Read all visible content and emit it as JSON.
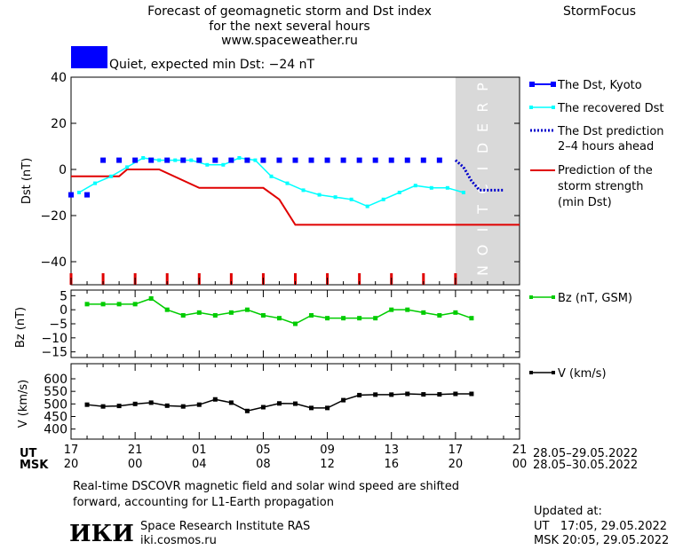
{
  "header": {
    "title_line1": "Forecast of geomagnetic storm and Dst index",
    "title_line2": "for the next several hours",
    "website": "www.spaceweather.ru",
    "brand": "StormFocus"
  },
  "status": {
    "text": "Quiet, expected min Dst: −24 nT",
    "color": "#0000ff"
  },
  "prediction_band": {
    "label": "PREDICTION",
    "color": "#d9d9d9"
  },
  "colors": {
    "dst_kyoto": "#0000ff",
    "dst_recovered": "#00ffff",
    "dst_prediction": "#0000cc",
    "storm_strength": "#e00000",
    "bz": "#00cc00",
    "speed": "#000000"
  },
  "legend": {
    "dst_kyoto": "The Dst, Kyoto",
    "dst_recovered": "The recovered Dst",
    "dst_prediction_line1": "The Dst prediction",
    "dst_prediction_line2": "2–4 hours ahead",
    "storm_line1": "Prediction of the",
    "storm_line2": "storm strength",
    "storm_line3": "(min Dst)",
    "bz": "Bz (nT, GSM)",
    "speed": "V (km/s)"
  },
  "time_axis": {
    "ut_label": "UT",
    "msk_label": "MSK",
    "ut_ticks": [
      "17",
      "21",
      "01",
      "05",
      "09",
      "13",
      "17",
      "21"
    ],
    "msk_ticks": [
      "20",
      "00",
      "04",
      "08",
      "12",
      "16",
      "20",
      "00"
    ],
    "ut_dates": "28.05–29.05.2022",
    "msk_dates": "28.05–30.05.2022"
  },
  "footer": {
    "note_line1": "Real-time DSCOVR magnetic field and solar wind speed are shifted",
    "note_line2": "forward, accounting for L1-Earth propagation",
    "logo_text": "ИКИ",
    "institute": "Space Research Institute RAS",
    "site": "iki.cosmos.ru",
    "updated_label": "Updated at:",
    "updated_ut": "UT   17:05, 29.05.2022",
    "updated_msk": "MSK 20:05, 29.05.2022"
  },
  "chart_data": [
    {
      "type": "line",
      "ylabel": "Dst (nT)",
      "ylim": [
        -50,
        40
      ],
      "yticks": [
        40,
        20,
        0,
        -20,
        -40
      ],
      "xlim": [
        0,
        56
      ],
      "grid": false,
      "prediction_start_x": 48,
      "series": [
        {
          "name": "The Dst, Kyoto",
          "style": "squares",
          "x": [
            0,
            2,
            4,
            6,
            8,
            10,
            12,
            14,
            16,
            18,
            20,
            22,
            24,
            26,
            28,
            30,
            32,
            34,
            36,
            38,
            40,
            42,
            44,
            46
          ],
          "y": [
            -11,
            -11,
            4,
            4,
            4,
            4,
            4,
            4,
            4,
            4,
            4,
            4,
            4,
            4,
            4,
            4,
            4,
            4,
            4,
            4,
            4,
            4,
            4,
            4
          ]
        },
        {
          "name": "The recovered Dst",
          "style": "line-markers",
          "x": [
            1,
            3,
            5,
            7,
            9,
            11,
            13,
            15,
            17,
            19,
            21,
            23,
            25,
            27,
            29,
            31,
            33,
            35,
            37,
            39,
            41,
            43,
            45,
            47,
            49
          ],
          "y": [
            -10,
            -6,
            -3,
            1,
            5,
            4,
            4,
            4,
            2,
            2,
            5,
            4,
            -3,
            -6,
            -9,
            -11,
            -12,
            -13,
            -16,
            -13,
            -10,
            -7,
            -8,
            -8,
            -10
          ]
        },
        {
          "name": "The Dst prediction 2–4 hours ahead",
          "style": "dotted",
          "x": [
            48,
            49,
            50,
            51,
            52,
            53,
            54
          ],
          "y": [
            4,
            1,
            -5,
            -9,
            -9,
            -9,
            -9
          ]
        },
        {
          "name": "Prediction of the storm strength (min Dst)",
          "style": "step",
          "x": [
            0,
            6,
            7,
            10,
            11,
            16,
            17,
            18,
            24,
            26,
            28,
            56
          ],
          "y": [
            -3,
            -3,
            0,
            0,
            0,
            -8,
            -8,
            -8,
            -8,
            -13,
            -24,
            -24
          ]
        }
      ],
      "storm_markers_x": [
        0,
        4,
        8,
        12,
        16,
        20,
        24,
        28,
        32,
        36,
        40,
        44,
        48
      ]
    },
    {
      "type": "line",
      "ylabel": "Bz (nT)",
      "ylim": [
        -17,
        7
      ],
      "yticks": [
        5,
        0,
        -5,
        -10,
        -15
      ],
      "xlim": [
        0,
        56
      ],
      "series": [
        {
          "name": "Bz (nT, GSM)",
          "x": [
            2,
            4,
            6,
            8,
            10,
            12,
            14,
            16,
            18,
            20,
            22,
            24,
            26,
            28,
            30,
            32,
            34,
            36,
            38,
            40,
            42,
            44,
            46,
            48,
            50
          ],
          "y": [
            2,
            2,
            2,
            2,
            4,
            0,
            -2,
            -1,
            -2,
            -1,
            0,
            -2,
            -3,
            -5,
            -2,
            -3,
            -3,
            -3,
            -3,
            0,
            0,
            -1,
            -2,
            -1,
            -3
          ]
        }
      ]
    },
    {
      "type": "line",
      "ylabel": "V (km/s)",
      "ylim": [
        360,
        660
      ],
      "yticks": [
        600,
        550,
        500,
        450,
        400
      ],
      "xlim": [
        0,
        56
      ],
      "series": [
        {
          "name": "V (km/s)",
          "x": [
            2,
            4,
            6,
            8,
            10,
            12,
            14,
            16,
            18,
            20,
            22,
            24,
            26,
            28,
            30,
            32,
            34,
            36,
            38,
            40,
            42,
            44,
            46,
            48,
            50
          ],
          "y": [
            497,
            490,
            492,
            500,
            505,
            493,
            490,
            497,
            518,
            505,
            472,
            487,
            502,
            501,
            484,
            484,
            515,
            535,
            537,
            537,
            540,
            538,
            538,
            540,
            540
          ]
        }
      ]
    }
  ]
}
